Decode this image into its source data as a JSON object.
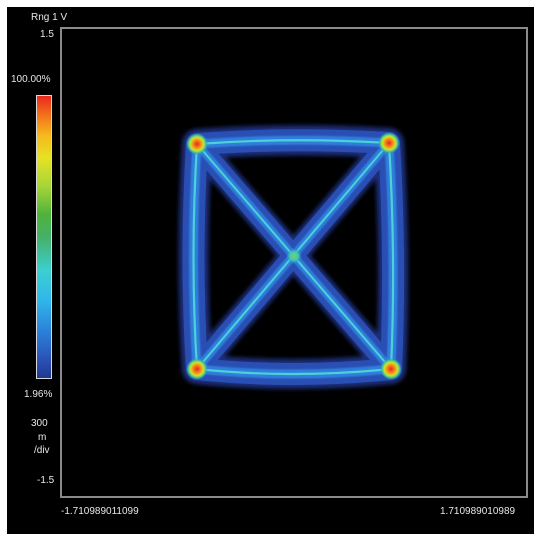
{
  "channel_label": "Rng 1  V",
  "y_axis": {
    "max_label": "1.5",
    "min_label": "-1.5",
    "scale_value": "300",
    "scale_unit": "m",
    "scale_per": "/div"
  },
  "x_axis": {
    "min_label": "-1.710989011099",
    "max_label": "1.710989010989"
  },
  "colorbar": {
    "max_label": "100.00%",
    "min_label": "1.96%"
  },
  "colors": {
    "background": "#000000",
    "frame": "#8a8a8a",
    "trace_outer": "#2a4fb4",
    "trace_mid": "#2f7fdc",
    "trace_core": "#4fd0d8",
    "hotspot": "#e8281c"
  }
}
